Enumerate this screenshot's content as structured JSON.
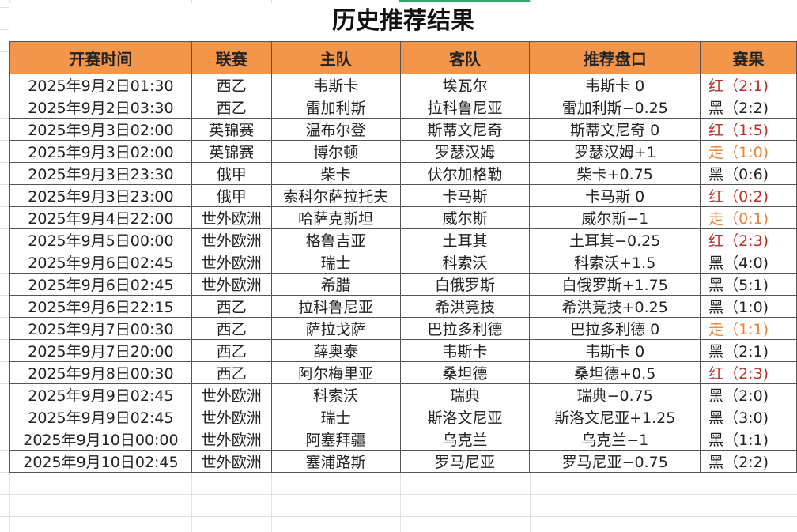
{
  "title": "历史推荐结果",
  "headers": [
    "开赛时间",
    "联赛",
    "主队",
    "客队",
    "推荐盘口",
    "赛果"
  ],
  "colors": {
    "header_bg": "#f4964a",
    "red": "#b8302a",
    "orange": "#e8833a",
    "black": "#222222"
  },
  "rows": [
    [
      "2025年9月2日01:30",
      "西乙",
      "韦斯卡",
      "埃瓦尔",
      "韦斯卡 0",
      "红（2:1)",
      "red"
    ],
    [
      "2025年9月2日03:30",
      "西乙",
      "雷加利斯",
      "拉科鲁尼亚",
      "雷加利斯−0.25",
      "黑（2:2)",
      "black"
    ],
    [
      "2025年9月3日02:00",
      "英锦赛",
      "温布尔登",
      "斯蒂文尼奇",
      "斯蒂文尼奇 0",
      "红（1:5)",
      "red"
    ],
    [
      "2025年9月3日02:00",
      "英锦赛",
      "博尔顿",
      "罗瑟汉姆",
      "罗瑟汉姆+1",
      "走（1:0)",
      "orange"
    ],
    [
      "2025年9月3日23:30",
      "俄甲",
      "柴卡",
      "伏尔加格勒",
      "柴卡+0.75",
      "黑（0:6)",
      "black"
    ],
    [
      "2025年9月3日23:00",
      "俄甲",
      "索科尔萨拉托夫",
      "卡马斯",
      "卡马斯 0",
      "红（0:2)",
      "red"
    ],
    [
      "2025年9月4日22:00",
      "世外欧洲",
      "哈萨克斯坦",
      "威尔斯",
      "威尔斯−1",
      "走（0:1)",
      "orange"
    ],
    [
      "2025年9月5日00:00",
      "世外欧洲",
      "格鲁吉亚",
      "土耳其",
      "土耳其−0.25",
      "红（2:3)",
      "red"
    ],
    [
      "2025年9月6日02:45",
      "世外欧洲",
      "瑞士",
      "科索沃",
      "科索沃+1.5",
      "黑（4:0)",
      "black"
    ],
    [
      "2025年9月6日02:45",
      "世外欧洲",
      "希腊",
      "白俄罗斯",
      "白俄罗斯+1.75",
      "黑（5:1)",
      "black"
    ],
    [
      "2025年9月6日22:15",
      "西乙",
      "拉科鲁尼亚",
      "希洪竞技",
      "希洪竞技+0.25",
      "黑（1:0)",
      "black"
    ],
    [
      "2025年9月7日00:30",
      "西乙",
      "萨拉戈萨",
      "巴拉多利德",
      "巴拉多利德 0",
      "走（1:1)",
      "orange"
    ],
    [
      "2025年9月7日20:00",
      "西乙",
      "薛奥泰",
      "韦斯卡",
      "韦斯卡 0",
      "黑（2:1)",
      "black"
    ],
    [
      "2025年9月8日00:30",
      "西乙",
      "阿尔梅里亚",
      "桑坦德",
      "桑坦德+0.5",
      "红（2:3)",
      "red"
    ],
    [
      "2025年9月9日02:45",
      "世外欧洲",
      "科索沃",
      "瑞典",
      "瑞典−0.75",
      "黑（2:0)",
      "black"
    ],
    [
      "2025年9月9日02:45",
      "世外欧洲",
      "瑞士",
      "斯洛文尼亚",
      "斯洛文尼亚+1.25",
      "黑（3:0)",
      "black"
    ],
    [
      "2025年9月10日00:00",
      "世外欧洲",
      "阿塞拜疆",
      "乌克兰",
      "乌克兰−1",
      "黑（1:1)",
      "black"
    ],
    [
      "2025年9月10日02:45",
      "世外欧洲",
      "塞浦路斯",
      "罗马尼亚",
      "罗马尼亚−0.75",
      "黑（2:2)",
      "black"
    ]
  ]
}
